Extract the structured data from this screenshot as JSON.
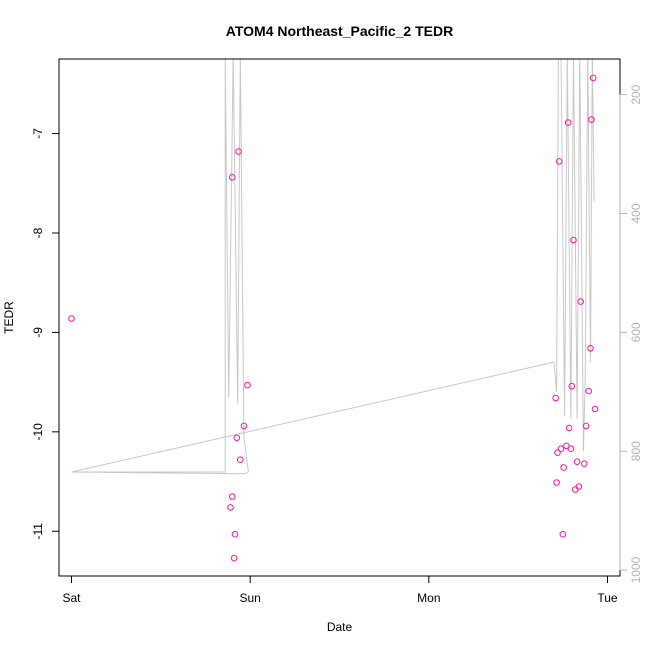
{
  "chart_data": {
    "type": "scatter",
    "title": "ATOM4 Northeast_Pacific_2 TEDR",
    "xlabel": "Date",
    "ylabel": "TEDR",
    "x_ticks": [
      {
        "label": "Sat",
        "day": 0
      },
      {
        "label": "Sun",
        "day": 1
      },
      {
        "label": "Mon",
        "day": 2
      },
      {
        "label": "Tue",
        "day": 3
      }
    ],
    "xlim_days": [
      -0.07,
      3.07
    ],
    "ylim": [
      -11.45,
      -6.25
    ],
    "y_ticks": [
      -7,
      -8,
      -9,
      -10,
      -11
    ],
    "right_axis": {
      "ticks": [
        200,
        400,
        600,
        800,
        1000
      ],
      "ylim": [
        1010,
        140
      ],
      "color": "#b4b4b4",
      "reversed": true
    },
    "points_color": "#ff1493",
    "line_color": "#c8c8c8",
    "series": [
      {
        "kind": "points",
        "points": [
          {
            "day": 0.0,
            "y": -8.86
          },
          {
            "day": 0.89,
            "y": -10.76
          },
          {
            "day": 0.9,
            "y": -10.65
          },
          {
            "day": 0.9,
            "y": -7.44
          },
          {
            "day": 0.91,
            "y": -11.27
          },
          {
            "day": 0.915,
            "y": -11.03
          },
          {
            "day": 0.925,
            "y": -10.06
          },
          {
            "day": 0.935,
            "y": -7.18
          },
          {
            "day": 0.945,
            "y": -10.28
          },
          {
            "day": 0.965,
            "y": -9.94
          },
          {
            "day": 0.985,
            "y": -9.53
          },
          {
            "day": 2.71,
            "y": -9.66
          },
          {
            "day": 2.715,
            "y": -10.51
          },
          {
            "day": 2.72,
            "y": -10.21
          },
          {
            "day": 2.73,
            "y": -7.28
          },
          {
            "day": 2.74,
            "y": -10.17
          },
          {
            "day": 2.75,
            "y": -11.03
          },
          {
            "day": 2.755,
            "y": -10.36
          },
          {
            "day": 2.77,
            "y": -10.14
          },
          {
            "day": 2.78,
            "y": -6.89
          },
          {
            "day": 2.785,
            "y": -9.96
          },
          {
            "day": 2.795,
            "y": -10.17
          },
          {
            "day": 2.8,
            "y": -9.54
          },
          {
            "day": 2.81,
            "y": -8.07
          },
          {
            "day": 2.82,
            "y": -10.58
          },
          {
            "day": 2.83,
            "y": -10.3
          },
          {
            "day": 2.84,
            "y": -10.55
          },
          {
            "day": 2.85,
            "y": -8.69
          },
          {
            "day": 2.87,
            "y": -10.32
          },
          {
            "day": 2.88,
            "y": -9.94
          },
          {
            "day": 2.895,
            "y": -9.59
          },
          {
            "day": 2.905,
            "y": -9.16
          },
          {
            "day": 2.91,
            "y": -6.86
          },
          {
            "day": 2.92,
            "y": -6.44
          },
          {
            "day": 2.93,
            "y": -9.77
          }
        ]
      },
      {
        "kind": "line",
        "axis": "right",
        "points": [
          {
            "day": 0.0,
            "v": 835
          },
          {
            "day": 0.97,
            "v": 838
          },
          {
            "day": 0.99,
            "v": 835
          },
          {
            "day": 0.965,
            "v": 775
          },
          {
            "day": 0.945,
            "v": 130
          },
          {
            "day": 0.93,
            "v": 720
          },
          {
            "day": 0.905,
            "v": 130
          },
          {
            "day": 0.88,
            "v": 710
          },
          {
            "day": 0.86,
            "v": 130
          },
          {
            "day": 0.86,
            "v": 835
          },
          {
            "day": 0.0,
            "v": 835
          },
          {
            "day": 0.0,
            "v": 835
          },
          {
            "day": 2.7,
            "v": 650
          },
          {
            "day": 2.715,
            "v": 700
          },
          {
            "day": 2.725,
            "v": 130
          },
          {
            "day": 2.74,
            "v": 130
          },
          {
            "day": 2.76,
            "v": 740
          },
          {
            "day": 2.775,
            "v": 130
          },
          {
            "day": 2.795,
            "v": 745
          },
          {
            "day": 2.81,
            "v": 130
          },
          {
            "day": 2.83,
            "v": 745
          },
          {
            "day": 2.845,
            "v": 130
          },
          {
            "day": 2.865,
            "v": 800
          },
          {
            "day": 2.875,
            "v": 680
          },
          {
            "day": 2.89,
            "v": 130
          },
          {
            "day": 2.905,
            "v": 650
          },
          {
            "day": 2.915,
            "v": 130
          },
          {
            "day": 2.925,
            "v": 380
          }
        ]
      }
    ]
  }
}
